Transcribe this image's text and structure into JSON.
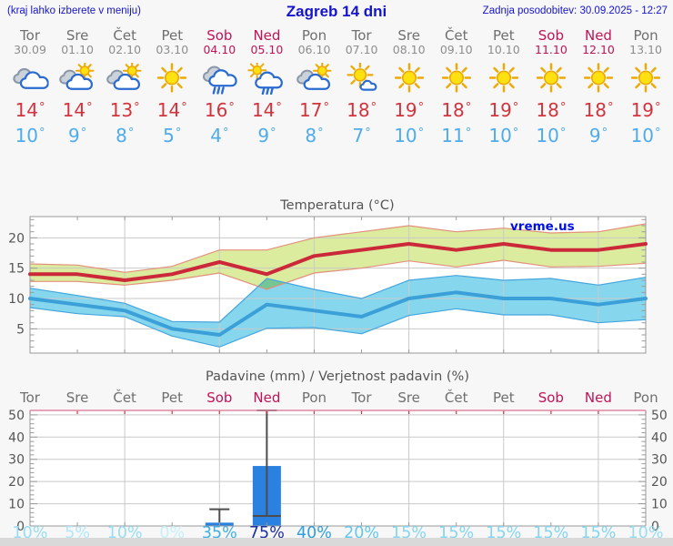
{
  "header": {
    "left_note": "(kraj lahko izberete v meniju)",
    "title": "Zagreb 14 dni",
    "updated": "Zadnja posodobitev: 30.09.2025 - 12:27"
  },
  "colors": {
    "header_text": "#1414cc",
    "weekday_text": "#6f6f6f",
    "weekend_text": "#bf1457",
    "tmax_text": "#d2333c",
    "tmin_text": "#4fabea",
    "chart_text": "#555555",
    "footer_bar": "#d9d9d9"
  },
  "days": [
    {
      "name": "Tor",
      "date": "30.09",
      "weekend": false,
      "icon": "cloudy",
      "tmax": 14,
      "tmin": 10
    },
    {
      "name": "Sre",
      "date": "01.10",
      "weekend": false,
      "icon": "partly-cloudy",
      "tmax": 14,
      "tmin": 9
    },
    {
      "name": "Čet",
      "date": "02.10",
      "weekend": false,
      "icon": "partly-cloudy",
      "tmax": 13,
      "tmin": 8
    },
    {
      "name": "Pet",
      "date": "03.10",
      "weekend": false,
      "icon": "sunny",
      "tmax": 14,
      "tmin": 5
    },
    {
      "name": "Sob",
      "date": "04.10",
      "weekend": true,
      "icon": "rain",
      "tmax": 16,
      "tmin": 4
    },
    {
      "name": "Ned",
      "date": "05.10",
      "weekend": true,
      "icon": "sun-shower",
      "tmax": 14,
      "tmin": 9
    },
    {
      "name": "Pon",
      "date": "06.10",
      "weekend": false,
      "icon": "partly-cloudy",
      "tmax": 17,
      "tmin": 8
    },
    {
      "name": "Tor",
      "date": "07.10",
      "weekend": false,
      "icon": "mostly-sunny",
      "tmax": 18,
      "tmin": 7
    },
    {
      "name": "Sre",
      "date": "08.10",
      "weekend": false,
      "icon": "sunny",
      "tmax": 19,
      "tmin": 10
    },
    {
      "name": "Čet",
      "date": "09.10",
      "weekend": false,
      "icon": "sunny",
      "tmax": 18,
      "tmin": 11
    },
    {
      "name": "Pet",
      "date": "10.10",
      "weekend": false,
      "icon": "sunny",
      "tmax": 19,
      "tmin": 10
    },
    {
      "name": "Sob",
      "date": "11.10",
      "weekend": true,
      "icon": "sunny",
      "tmax": 18,
      "tmin": 10
    },
    {
      "name": "Ned",
      "date": "12.10",
      "weekend": true,
      "icon": "sunny",
      "tmax": 18,
      "tmin": 9
    },
    {
      "name": "Pon",
      "date": "13.10",
      "weekend": false,
      "icon": "sunny",
      "tmax": 19,
      "tmin": 10
    }
  ],
  "chart_data": [
    {
      "type": "line",
      "title": "Temperatura (°C)",
      "watermark": "vreme.us",
      "categories": [
        "Tor 30.09",
        "Sre 01.10",
        "Čet 02.10",
        "Pet 03.10",
        "Sob 04.10",
        "Ned 05.10",
        "Pon 06.10",
        "Tor 07.10",
        "Sre 08.10",
        "Čet 09.10",
        "Pet 10.10",
        "Sob 11.10",
        "Ned 12.10",
        "Pon 13.10"
      ],
      "ylim": [
        1,
        23.5
      ],
      "yticks": [
        5,
        10,
        15,
        20
      ],
      "grid_category_indices": [
        2,
        4,
        6,
        8,
        10,
        12
      ],
      "legend_position": "none",
      "series": [
        {
          "name": "max temperature",
          "color": "#cb2939",
          "band_color": "#dcec9f",
          "band_edge_color": "#e2907c",
          "values": [
            14,
            14,
            13,
            14,
            16,
            14,
            17,
            18,
            19,
            18,
            19,
            18,
            18,
            19
          ],
          "band_upper": [
            15.7,
            15.5,
            14.3,
            15.3,
            18,
            18,
            20,
            21,
            22,
            21,
            21.6,
            20.8,
            21,
            22.3
          ],
          "band_lower": [
            12.8,
            12.8,
            12.2,
            13,
            14.2,
            11.5,
            14.2,
            15,
            16.2,
            15.2,
            16.3,
            15.2,
            15.3,
            15.8
          ]
        },
        {
          "name": "min temperature",
          "color": "#3b9fd8",
          "band_color": "#86d7ee",
          "band_edge_color": "#44a5dc",
          "values": [
            10,
            9,
            8,
            5,
            4,
            9,
            8,
            7,
            10,
            11,
            10,
            10,
            9,
            10
          ],
          "band_upper": [
            11.7,
            10.5,
            9.2,
            6.2,
            6.1,
            13.3,
            11.5,
            10,
            13,
            13.8,
            13,
            13.3,
            12.2,
            13.5
          ],
          "band_lower": [
            8.5,
            7.5,
            7,
            3.8,
            2,
            5.1,
            5.2,
            4.2,
            7.2,
            8.3,
            7.3,
            7.3,
            6,
            6.5
          ]
        }
      ]
    },
    {
      "type": "bar",
      "title": "Padavine (mm) / Verjetnost padavin (%)",
      "categories": [
        "Tor",
        "Sre",
        "Čet",
        "Pet",
        "Sob",
        "Ned",
        "Pon",
        "Tor",
        "Sre",
        "Čet",
        "Pet",
        "Sob",
        "Ned",
        "Pon"
      ],
      "weekend_indices": [
        4,
        5,
        11,
        12
      ],
      "ylim": [
        0,
        52
      ],
      "yticks": [
        0,
        10,
        20,
        30,
        40,
        50
      ],
      "grid_category_indices": [
        2,
        4,
        6,
        8,
        10,
        12
      ],
      "bar_color": "#2b81e0",
      "whisker_color": "#4d4d4d",
      "top_border_color": "#e087a2",
      "top_tick_color": "#cc3344",
      "bars": [
        {
          "category_index": 4,
          "category": "Sob 04.10",
          "value": 1.5,
          "whisker_high": 7.5
        },
        {
          "category_index": 5,
          "category": "Ned 05.10",
          "value": 27,
          "whisker_low": 4.5,
          "whisker_high": 52
        }
      ],
      "probabilities": [
        {
          "label": "10%",
          "color": "#96ddf3"
        },
        {
          "label": "5%",
          "color": "#b0e7f8"
        },
        {
          "label": "10%",
          "color": "#96ddf3"
        },
        {
          "label": "0%",
          "color": "#c6f0fb"
        },
        {
          "label": "35%",
          "color": "#3fb0e4"
        },
        {
          "label": "75%",
          "color": "#1b2f9e"
        },
        {
          "label": "40%",
          "color": "#2f9fdb"
        },
        {
          "label": "20%",
          "color": "#63c8ec"
        },
        {
          "label": "15%",
          "color": "#85d5f0"
        },
        {
          "label": "15%",
          "color": "#85d5f0"
        },
        {
          "label": "15%",
          "color": "#85d5f0"
        },
        {
          "label": "15%",
          "color": "#85d5f0"
        },
        {
          "label": "15%",
          "color": "#85d5f0"
        },
        {
          "label": "10%",
          "color": "#96ddf3"
        }
      ]
    }
  ]
}
